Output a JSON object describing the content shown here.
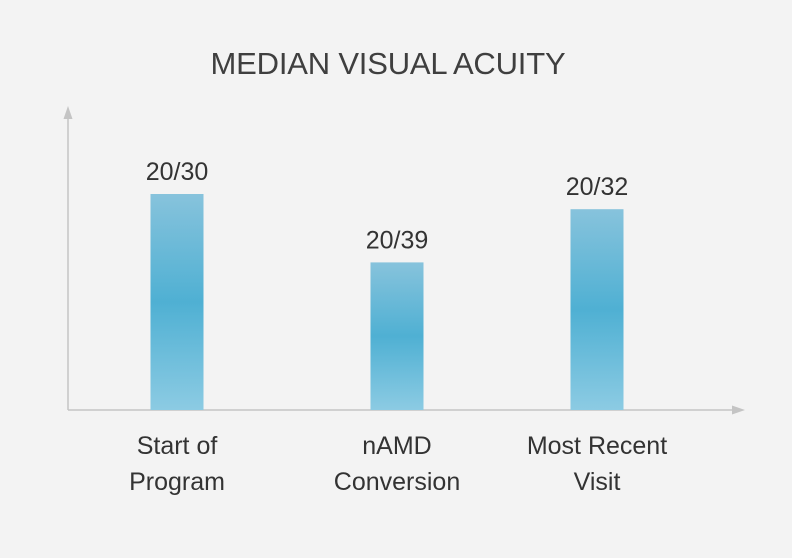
{
  "chart_data": {
    "type": "bar",
    "title": "MEDIAN VISUAL ACUITY",
    "categories": [
      [
        "Start of",
        "Program"
      ],
      [
        "nAMD",
        "Conversion"
      ],
      [
        "Most Recent",
        "Visit"
      ]
    ],
    "value_labels": [
      "20/30",
      "20/39",
      "20/32"
    ],
    "values": [
      30,
      39,
      32
    ],
    "value_semantics": "Snellen denominator; lower denominator = better acuity = taller bar",
    "axis_range": [
      20,
      50
    ],
    "xlabel": "",
    "ylabel": "",
    "grid": false,
    "legend": false
  },
  "colors": {
    "bar_top": "#87c3dc",
    "bar_mid": "#4fb0d3",
    "bar_bottom": "#8ccbe3",
    "axis": "#c4c4c4",
    "text": "#333333",
    "title": "#3f3f3f",
    "background": "#f3f3f3"
  }
}
